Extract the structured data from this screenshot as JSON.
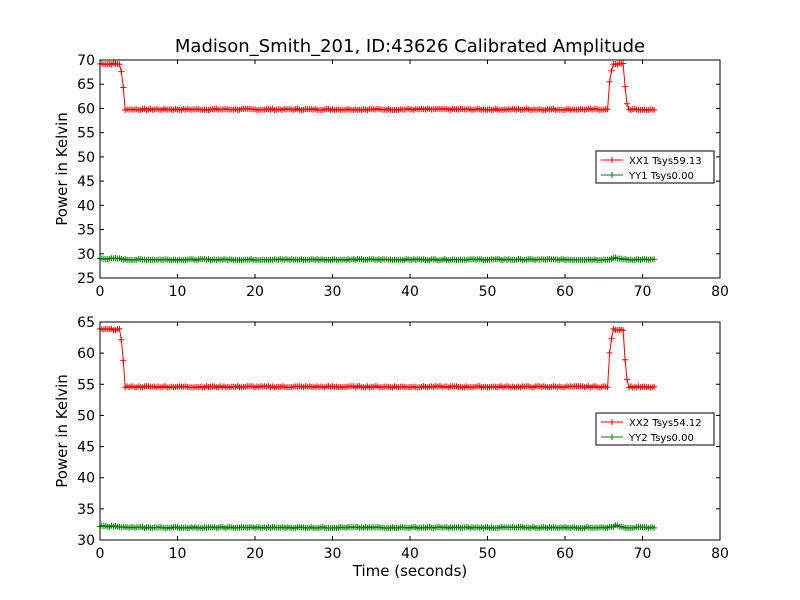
{
  "title": "Madison_Smith_201, ID:43626 Calibrated Amplitude",
  "colors": {
    "series_xx": "#ff0000",
    "series_yy": "#008000",
    "axes": "#000000",
    "background": "#ffffff"
  },
  "chart_data": [
    {
      "type": "line",
      "title": "Madison_Smith_201, ID:43626 Calibrated Amplitude",
      "xlabel": "",
      "ylabel": "Power in Kelvin",
      "xlim": [
        0,
        80
      ],
      "ylim": [
        25,
        70
      ],
      "xticks": [
        "0",
        "10",
        "20",
        "30",
        "40",
        "50",
        "60",
        "70",
        "80"
      ],
      "yticks": [
        "25",
        "30",
        "35",
        "40",
        "45",
        "50",
        "55",
        "60",
        "65",
        "70"
      ],
      "legend_position": "center-right",
      "marker": "plus",
      "series": [
        {
          "name": "XX1 Tsys59.13",
          "color": "#ff0000",
          "x": [
            0,
            2.5,
            2.9,
            3.2,
            65.5,
            65.8,
            66.2,
            67.5,
            67.8,
            68.1,
            71.5
          ],
          "y": [
            69.2,
            69.2,
            66.5,
            59.8,
            59.8,
            66.5,
            69.2,
            69.2,
            63.5,
            59.8,
            59.7
          ],
          "base": 59.7,
          "noise": 0.15
        },
        {
          "name": "YY1 Tsys0.00",
          "color": "#008000",
          "x": [
            0,
            2.5,
            3.2,
            65.5,
            66.5,
            68.0,
            71.5
          ],
          "y": [
            29.0,
            29.0,
            28.8,
            28.8,
            29.1,
            28.8,
            28.8
          ],
          "base": 28.8,
          "noise": 0.12
        }
      ]
    },
    {
      "type": "line",
      "title": "",
      "xlabel": "Time (seconds)",
      "ylabel": "Power in Kelvin",
      "xlim": [
        0,
        80
      ],
      "ylim": [
        30,
        65
      ],
      "xticks": [
        "0",
        "10",
        "20",
        "30",
        "40",
        "50",
        "60",
        "70",
        "80"
      ],
      "yticks": [
        "30",
        "35",
        "40",
        "45",
        "50",
        "55",
        "60",
        "65"
      ],
      "legend_position": "center-right",
      "marker": "plus",
      "series": [
        {
          "name": "XX2 Tsys54.12",
          "color": "#ff0000",
          "x": [
            0,
            2.5,
            2.9,
            3.2,
            65.5,
            65.8,
            66.2,
            67.5,
            67.8,
            68.1,
            71.5
          ],
          "y": [
            63.8,
            63.8,
            61.0,
            54.6,
            54.6,
            61.0,
            63.8,
            63.8,
            58.0,
            54.6,
            54.5
          ],
          "base": 54.5,
          "noise": 0.12
        },
        {
          "name": "YY2 Tsys0.00",
          "color": "#008000",
          "x": [
            0,
            2.5,
            3.2,
            65.5,
            66.5,
            68.0,
            71.5
          ],
          "y": [
            32.2,
            32.2,
            32.0,
            32.0,
            32.3,
            32.0,
            32.0
          ],
          "base": 32.0,
          "noise": 0.1
        }
      ]
    }
  ]
}
